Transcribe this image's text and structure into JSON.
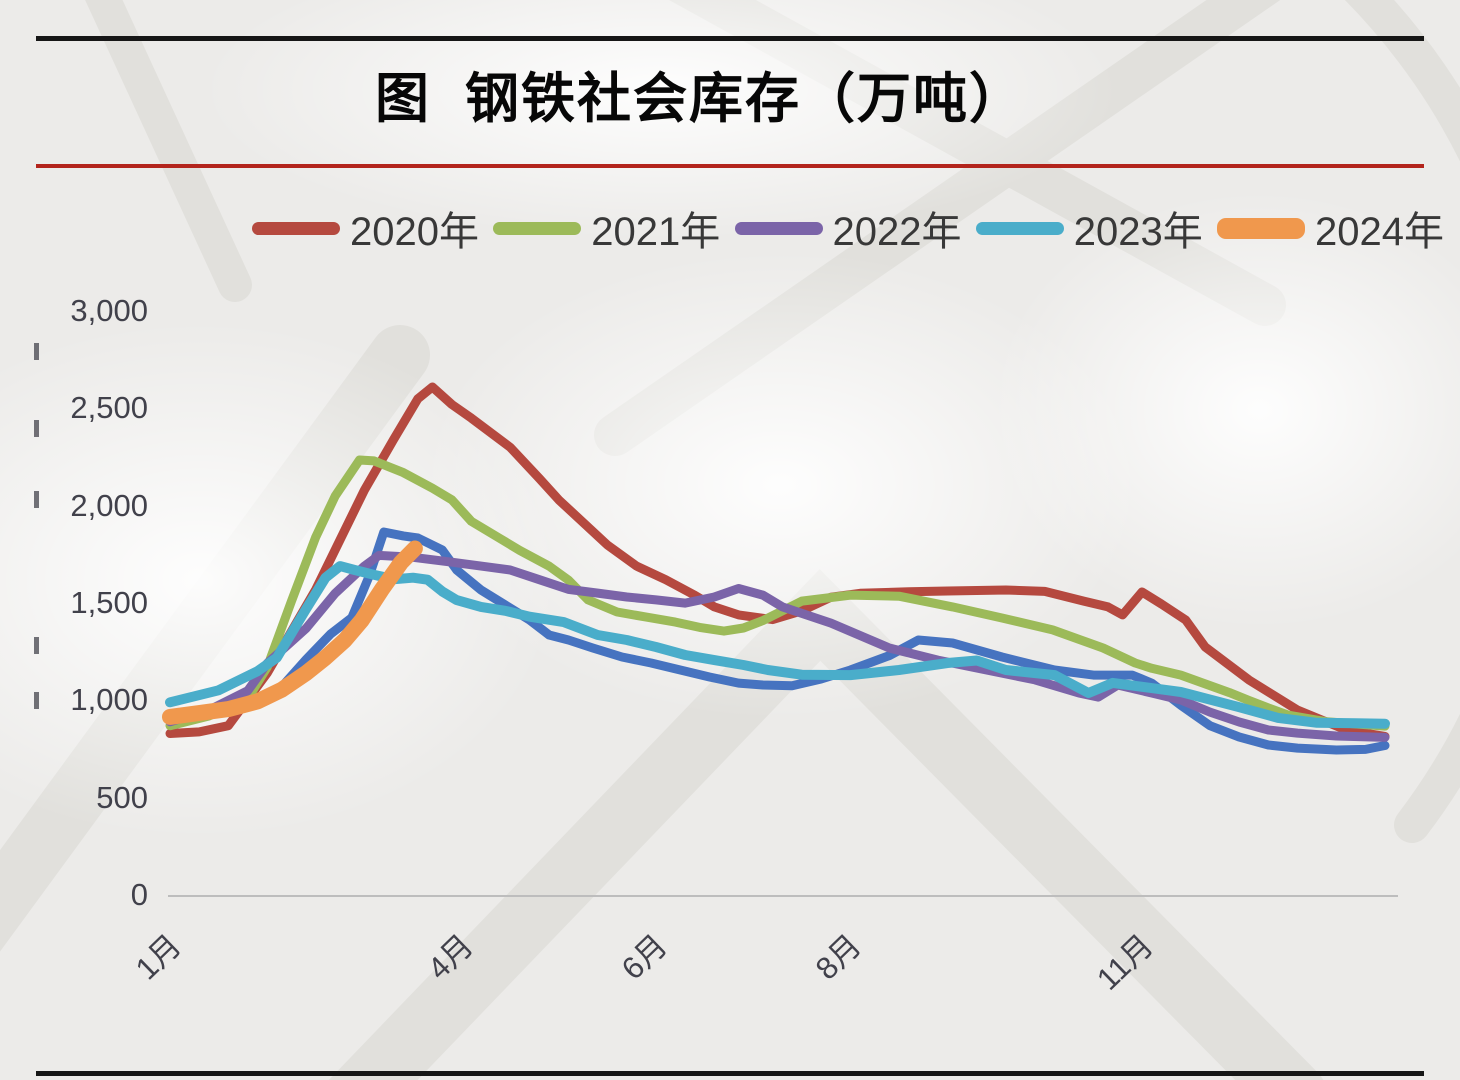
{
  "page": {
    "background": "#ecebe9",
    "top_rule_color": "#161616",
    "red_rule_color": "#b3241c",
    "bottom_rule_color": "#161616"
  },
  "title": {
    "text": "图  钢铁社会库存（万吨）"
  },
  "legend": {
    "items": [
      {
        "label": "2020年",
        "color": "#b5493f",
        "thick": false
      },
      {
        "label": "2021年",
        "color": "#9cba59",
        "thick": false
      },
      {
        "label": "2022年",
        "color": "#7b64a8",
        "thick": false
      },
      {
        "label": "2023年",
        "color": "#4aadca",
        "thick": false
      },
      {
        "label": "2024年",
        "color": "#f0984d",
        "thick": true
      }
    ]
  },
  "chart_data": {
    "type": "line",
    "title": "图 钢铁社会库存（万吨）",
    "xlabel": "",
    "ylabel": "",
    "ylim": [
      0,
      3000
    ],
    "grid": false,
    "legend_position": "top",
    "x_unit": "month_position (1 = 1月/Jan, 12 = 12月/Dec, fractional = within month)",
    "x_domain": [
      1,
      13.6
    ],
    "y_ticks": [
      {
        "label": "3,000",
        "value": 3000
      },
      {
        "label": "2,500",
        "value": 2500
      },
      {
        "label": "2,000",
        "value": 2000
      },
      {
        "label": "1,500",
        "value": 1500
      },
      {
        "label": "1,000",
        "value": 1000
      },
      {
        "label": "500",
        "value": 500
      },
      {
        "label": "0",
        "value": 0
      }
    ],
    "x_ticks": [
      {
        "label": "1月",
        "month": 1
      },
      {
        "label": "4月",
        "month": 4
      },
      {
        "label": "6月",
        "month": 6
      },
      {
        "label": "8月",
        "month": 8
      },
      {
        "label": "11月",
        "month": 11
      }
    ],
    "series": [
      {
        "name": "",
        "note": "unlabeled dark-blue line (no visible legend entry)",
        "color": "#4673c0",
        "stroke_width": 9,
        "in_legend": false,
        "points": [
          [
            1,
            930
          ],
          [
            1.5,
            960
          ],
          [
            1.9,
            1000
          ],
          [
            2.15,
            1080
          ],
          [
            2.4,
            1220
          ],
          [
            2.65,
            1350
          ],
          [
            2.87,
            1435
          ],
          [
            3.05,
            1650
          ],
          [
            3.2,
            1875
          ],
          [
            3.4,
            1855
          ],
          [
            3.55,
            1844
          ],
          [
            3.8,
            1783
          ],
          [
            3.95,
            1680
          ],
          [
            4.2,
            1577
          ],
          [
            4.45,
            1500
          ],
          [
            4.7,
            1423
          ],
          [
            4.9,
            1346
          ],
          [
            5.1,
            1320
          ],
          [
            5.35,
            1279
          ],
          [
            5.65,
            1233
          ],
          [
            5.95,
            1202
          ],
          [
            6.25,
            1166
          ],
          [
            6.55,
            1130
          ],
          [
            6.85,
            1099
          ],
          [
            7.1,
            1089
          ],
          [
            7.4,
            1085
          ],
          [
            7.7,
            1120
          ],
          [
            8,
            1166
          ],
          [
            8.4,
            1240
          ],
          [
            8.7,
            1320
          ],
          [
            9.05,
            1305
          ],
          [
            9.56,
            1233
          ],
          [
            10.1,
            1166
          ],
          [
            10.5,
            1140
          ],
          [
            10.9,
            1140
          ],
          [
            11.1,
            1099
          ],
          [
            11.4,
            985
          ],
          [
            11.7,
            880
          ],
          [
            12,
            822
          ],
          [
            12.3,
            781
          ],
          [
            12.6,
            765
          ],
          [
            13,
            755
          ],
          [
            13.3,
            758
          ],
          [
            13.5,
            778
          ]
        ]
      },
      {
        "name": "2020年",
        "color": "#b5493f",
        "stroke_width": 9,
        "in_legend": true,
        "points": [
          [
            1,
            840
          ],
          [
            1.3,
            848
          ],
          [
            1.6,
            880
          ],
          [
            2,
            1150
          ],
          [
            2.5,
            1580
          ],
          [
            3,
            2090
          ],
          [
            3.3,
            2350
          ],
          [
            3.55,
            2560
          ],
          [
            3.7,
            2620
          ],
          [
            3.9,
            2530
          ],
          [
            4.1,
            2460
          ],
          [
            4.5,
            2310
          ],
          [
            4.8,
            2150
          ],
          [
            5,
            2040
          ],
          [
            5.5,
            1808
          ],
          [
            5.8,
            1700
          ],
          [
            6.1,
            1630
          ],
          [
            6.4,
            1550
          ],
          [
            6.6,
            1490
          ],
          [
            6.85,
            1449
          ],
          [
            7.2,
            1425
          ],
          [
            7.5,
            1470
          ],
          [
            7.8,
            1540
          ],
          [
            8.1,
            1560
          ],
          [
            8.6,
            1568
          ],
          [
            9,
            1572
          ],
          [
            9.6,
            1577
          ],
          [
            10,
            1570
          ],
          [
            10.4,
            1520
          ],
          [
            10.65,
            1490
          ],
          [
            10.8,
            1449
          ],
          [
            11,
            1567
          ],
          [
            11.2,
            1505
          ],
          [
            11.45,
            1423
          ],
          [
            11.65,
            1284
          ],
          [
            12.1,
            1115
          ],
          [
            12.6,
            960
          ],
          [
            13.1,
            858
          ],
          [
            13.5,
            825
          ]
        ]
      },
      {
        "name": "2021年",
        "color": "#9cba59",
        "stroke_width": 9,
        "in_legend": true,
        "points": [
          [
            1,
            880
          ],
          [
            1.4,
            930
          ],
          [
            1.8,
            1020
          ],
          [
            2,
            1180
          ],
          [
            2.25,
            1520
          ],
          [
            2.5,
            1850
          ],
          [
            2.7,
            2060
          ],
          [
            2.95,
            2245
          ],
          [
            3.1,
            2240
          ],
          [
            3.4,
            2180
          ],
          [
            3.7,
            2100
          ],
          [
            3.9,
            2040
          ],
          [
            4.1,
            1930
          ],
          [
            4.4,
            1840
          ],
          [
            4.6,
            1780
          ],
          [
            4.9,
            1700
          ],
          [
            5.1,
            1628
          ],
          [
            5.3,
            1526
          ],
          [
            5.6,
            1464
          ],
          [
            5.9,
            1438
          ],
          [
            6.2,
            1412
          ],
          [
            6.45,
            1385
          ],
          [
            6.7,
            1366
          ],
          [
            6.9,
            1382
          ],
          [
            7.1,
            1420
          ],
          [
            7.5,
            1520
          ],
          [
            8,
            1551
          ],
          [
            8.5,
            1545
          ],
          [
            9.05,
            1490
          ],
          [
            9.56,
            1433
          ],
          [
            10.08,
            1372
          ],
          [
            10.6,
            1279
          ],
          [
            10.93,
            1202
          ],
          [
            11.1,
            1175
          ],
          [
            11.4,
            1140
          ],
          [
            11.6,
            1104
          ],
          [
            11.9,
            1050
          ],
          [
            12.1,
            1010
          ],
          [
            12.3,
            971
          ],
          [
            12.5,
            935
          ],
          [
            12.9,
            900
          ],
          [
            13.5,
            878
          ]
        ]
      },
      {
        "name": "2022年",
        "color": "#7b64a8",
        "stroke_width": 9,
        "in_legend": true,
        "points": [
          [
            1,
            900
          ],
          [
            1.4,
            960
          ],
          [
            1.8,
            1060
          ],
          [
            2,
            1200
          ],
          [
            2.4,
            1380
          ],
          [
            2.7,
            1560
          ],
          [
            3,
            1700
          ],
          [
            3.15,
            1755
          ],
          [
            3.5,
            1745
          ],
          [
            3.9,
            1720
          ],
          [
            4.2,
            1700
          ],
          [
            4.5,
            1680
          ],
          [
            4.8,
            1630
          ],
          [
            5.1,
            1580
          ],
          [
            5.4,
            1561
          ],
          [
            5.7,
            1541
          ],
          [
            6,
            1526
          ],
          [
            6.3,
            1510
          ],
          [
            6.6,
            1541
          ],
          [
            6.85,
            1585
          ],
          [
            7.1,
            1551
          ],
          [
            7.3,
            1490
          ],
          [
            7.8,
            1407
          ],
          [
            8.4,
            1279
          ],
          [
            8.9,
            1217
          ],
          [
            9.4,
            1166
          ],
          [
            9.9,
            1115
          ],
          [
            10.35,
            1048
          ],
          [
            10.55,
            1027
          ],
          [
            10.75,
            1089
          ],
          [
            11.1,
            1048
          ],
          [
            11.4,
            1012
          ],
          [
            11.7,
            950
          ],
          [
            12,
            899
          ],
          [
            12.3,
            858
          ],
          [
            12.6,
            842
          ],
          [
            13,
            827
          ],
          [
            13.5,
            820
          ]
        ]
      },
      {
        "name": "2023年",
        "color": "#4aadca",
        "stroke_width": 10,
        "in_legend": true,
        "points": [
          [
            1,
            1000
          ],
          [
            1.5,
            1062
          ],
          [
            1.9,
            1160
          ],
          [
            2.1,
            1230
          ],
          [
            2.4,
            1480
          ],
          [
            2.6,
            1640
          ],
          [
            2.75,
            1700
          ],
          [
            2.9,
            1680
          ],
          [
            3.1,
            1655
          ],
          [
            3.3,
            1632
          ],
          [
            3.5,
            1640
          ],
          [
            3.65,
            1630
          ],
          [
            3.8,
            1570
          ],
          [
            3.95,
            1525
          ],
          [
            4.2,
            1490
          ],
          [
            4.45,
            1470
          ],
          [
            4.7,
            1440
          ],
          [
            5.05,
            1412
          ],
          [
            5.4,
            1346
          ],
          [
            5.7,
            1320
          ],
          [
            6,
            1284
          ],
          [
            6.3,
            1243
          ],
          [
            6.6,
            1217
          ],
          [
            6.9,
            1192
          ],
          [
            7.15,
            1166
          ],
          [
            7.5,
            1142
          ],
          [
            8,
            1140
          ],
          [
            8.5,
            1166
          ],
          [
            9,
            1202
          ],
          [
            9.3,
            1215
          ],
          [
            9.6,
            1166
          ],
          [
            10.1,
            1140
          ],
          [
            10.45,
            1048
          ],
          [
            10.7,
            1100
          ],
          [
            11.1,
            1073
          ],
          [
            11.4,
            1053
          ],
          [
            12,
            975
          ],
          [
            12.4,
            920
          ],
          [
            12.8,
            895
          ],
          [
            13.2,
            893
          ],
          [
            13.5,
            890
          ]
        ]
      },
      {
        "name": "2024年",
        "color": "#f0984d",
        "stroke_width": 16,
        "in_legend": true,
        "points": [
          [
            1,
            925
          ],
          [
            1.3,
            945
          ],
          [
            1.6,
            965
          ],
          [
            1.9,
            1005
          ],
          [
            2.15,
            1065
          ],
          [
            2.4,
            1150
          ],
          [
            2.6,
            1230
          ],
          [
            2.8,
            1320
          ],
          [
            2.97,
            1420
          ],
          [
            3.18,
            1580
          ],
          [
            3.38,
            1720
          ],
          [
            3.52,
            1790
          ]
        ]
      }
    ]
  }
}
